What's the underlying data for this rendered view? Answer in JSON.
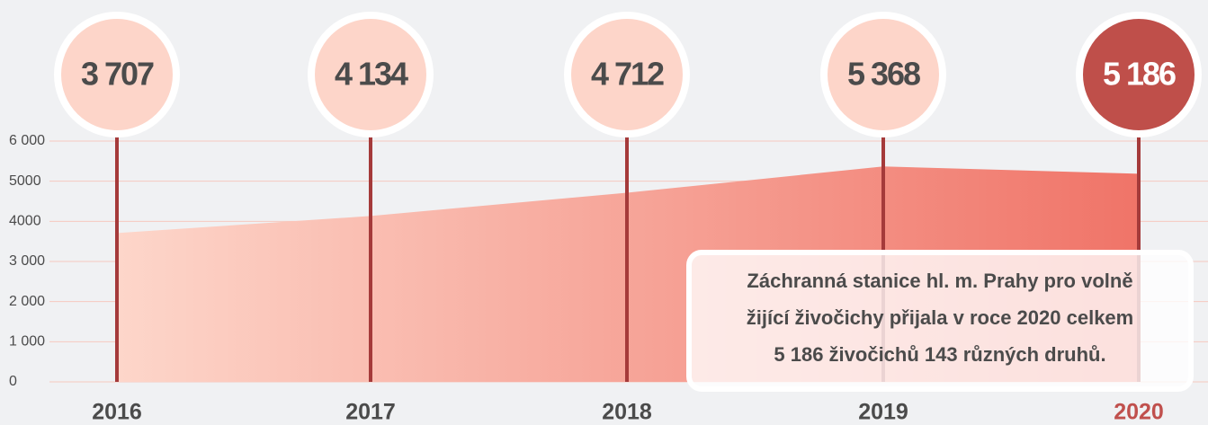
{
  "chart_data": {
    "type": "area",
    "categories": [
      "2016",
      "2017",
      "2018",
      "2019",
      "2020"
    ],
    "values": [
      3707,
      4134,
      4712,
      5368,
      5186
    ],
    "value_labels": [
      "3 707",
      "4 134",
      "4 712",
      "5 368",
      "5 186"
    ],
    "point_colors": [
      "#fdd5c9",
      "#fdd5c9",
      "#fdd5c9",
      "#fdd5c9",
      "#bf4f4a"
    ],
    "label_colors": [
      "#4b4b4b",
      "#4b4b4b",
      "#4b4b4b",
      "#4b4b4b",
      "#ffffff"
    ],
    "category_label_colors": [
      "#4b4b4b",
      "#4b4b4b",
      "#4b4b4b",
      "#4b4b4b",
      "#c0504d"
    ],
    "gradient": [
      "#fdd6ca",
      "#f07468"
    ],
    "stem_color": "#a53a3a",
    "ylim": [
      0,
      6000
    ],
    "yticks": [
      0,
      {
        "value": 1000,
        "label": "1 000"
      },
      {
        "value": 2000,
        "label": "2 000"
      },
      {
        "value": 3000,
        "label": "3 000"
      },
      4000,
      5000,
      {
        "value": 6000,
        "label": "6 000"
      }
    ],
    "grid": true,
    "annotation": [
      "Záchranná stanice hl. m. Prahy pro volně",
      "žijící živočichy přijala v roce 2020 celkem",
      "5 186 živočichů 143 různých druhů."
    ]
  }
}
